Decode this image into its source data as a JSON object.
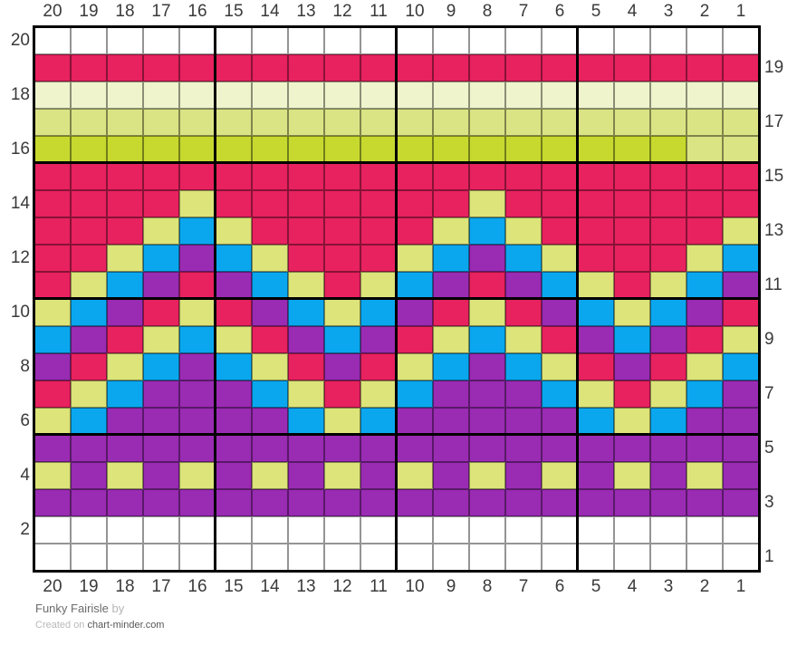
{
  "chart_data": {
    "type": "heatmap",
    "title": "Funky Fairisle",
    "description": "20x20 fair isle knitting colorwork chart; columns numbered 20 to 1 left to right, rows numbered 20 (top) to 1 (bottom); bold repeat guide lines every 5 stitches/rows",
    "width": 20,
    "height": 20,
    "bold_grid_every": 5,
    "palette": {
      "W": "#FFFFFF",
      "P": "#E8215F",
      "L": "#EFF4CC",
      "M": "#DBE484",
      "G": "#C7D92F",
      "Y": "#DCE47A",
      "B": "#0AA7EF",
      "U": "#9A2BB3"
    },
    "palette_names": {
      "W": "white",
      "P": "pink",
      "L": "pale-green",
      "M": "light-green",
      "G": "chartreuse",
      "Y": "yellow-green",
      "B": "blue",
      "U": "purple"
    },
    "grid_rows_top_to_bottom": [
      "WWWWWWWWWWWWWWWWWWWW",
      "PPPPPPPPPPPPPPPPPPPP",
      "LLLLLLLLLLLLLLLLLLLL",
      "MMMMMMMMMMMMMMMMMMMM",
      "GGGGGGGGGGGGGGGGGGMM",
      "PPPPPPPPPPPPPPPPPPPP",
      "PPPPYPPPPPPPYPPPPPPP",
      "PPPYBYPPPPPYBYPPPPPY",
      "PPYBUBYPPPYBUBYPPPYB",
      "PYBUPUBYPYBUPUBYPYBU",
      "YBUPYPUBYBUPYPUBYBUP",
      "BUPYBYPUBUPYBYPUBUPY",
      "UPYBUBYPUPYBUBYPUPYB",
      "PYBUUUBYPYBUUUBYPYBU",
      "YBUUUUUBYBUUUUUBYBUU",
      "UUUUUUUUUUUUUUUUUUUU",
      "YUYUYUYUYUYUYUYUYUYU",
      "UUUUUUUUUUUUUUUUUUUU",
      "WWWWWWWWWWWWWWWWWWWW",
      "WWWWWWWWWWWWWWWWWWWW"
    ]
  },
  "labels": {
    "top": [
      "20",
      "19",
      "18",
      "17",
      "16",
      "15",
      "14",
      "13",
      "12",
      "11",
      "10",
      "9",
      "8",
      "7",
      "6",
      "5",
      "4",
      "3",
      "2",
      "1"
    ],
    "bottom": [
      "20",
      "19",
      "18",
      "17",
      "16",
      "15",
      "14",
      "13",
      "12",
      "11",
      "10",
      "9",
      "8",
      "7",
      "6",
      "5",
      "4",
      "3",
      "2",
      "1"
    ],
    "left": [
      "20",
      "18",
      "16",
      "14",
      "12",
      "10",
      "8",
      "6",
      "4",
      "2"
    ],
    "right": [
      "19",
      "17",
      "15",
      "13",
      "11",
      "9",
      "7",
      "5",
      "3",
      "1"
    ]
  },
  "footer": {
    "title": "Funky Fairisle",
    "byline": "by",
    "created_on": "Created on",
    "site": "chart-minder.com"
  }
}
